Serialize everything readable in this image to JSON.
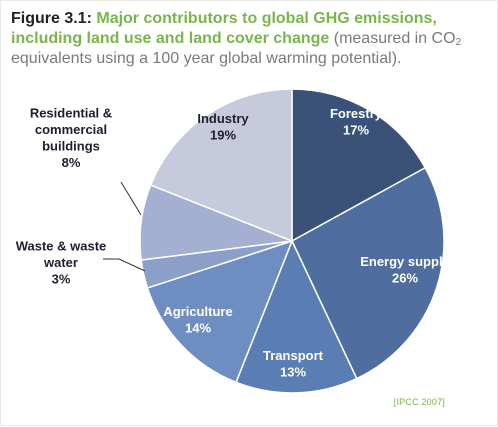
{
  "header": {
    "figure_label": "Figure 3.1:",
    "title_main": "Major contributors to global GHG emissions, including land use and land cover change",
    "subtitle_pre": "(measured in CO",
    "subtitle_sub": "2",
    "subtitle_post": " equivalents using a 100 year global warming potential)."
  },
  "source": "[IPCC 2007]",
  "colors": {
    "title_accent": "#79b64a",
    "inside_label": "#ffffff",
    "outside_label": "#1e1e2e"
  },
  "chart_data": {
    "type": "pie",
    "title": "Major contributors to global GHG emissions, including land use and land cover change",
    "unit": "%",
    "slices": [
      {
        "name": "Forestry",
        "value": 17,
        "label": "17%",
        "color": "#3a5278"
      },
      {
        "name": "Energy supply",
        "value": 26,
        "label": "26%",
        "color": "#4f6d9e"
      },
      {
        "name": "Transport",
        "value": 13,
        "label": "13%",
        "color": "#5a7eb4"
      },
      {
        "name": "Agriculture",
        "value": 14,
        "label": "14%",
        "color": "#6e8ec2"
      },
      {
        "name": "Waste & waste water",
        "value": 3,
        "label": "3%",
        "color": "#8b9fc8"
      },
      {
        "name": "Residential & commercial buildings",
        "value": 8,
        "label": "8%",
        "color": "#a4b0d2"
      },
      {
        "name": "Industry",
        "value": 19,
        "label": "19%",
        "color": "#c7cadd"
      }
    ],
    "display_names": [
      [
        "Forestry"
      ],
      [
        "Energy supply"
      ],
      [
        "Transport"
      ],
      [
        "Agriculture"
      ],
      [
        "Waste & waste",
        "water"
      ],
      [
        "Residential &",
        "commercial",
        "buildings"
      ],
      [
        "Industry"
      ]
    ]
  }
}
